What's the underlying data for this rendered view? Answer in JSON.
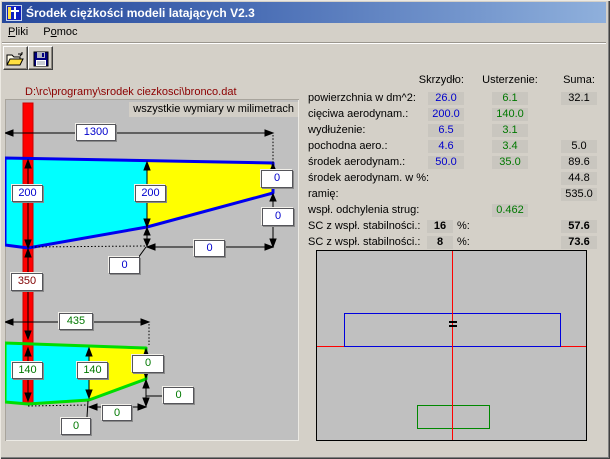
{
  "window": {
    "title": "Środek ciężkości modeli latających V2.3"
  },
  "menu": {
    "items": [
      {
        "label": "Pliki"
      },
      {
        "label": "Pomoc"
      }
    ]
  },
  "toolbar": {
    "open_icon": "open-folder-icon",
    "save_icon": "save-floppy-icon"
  },
  "file_path": "D:\\rc\\programy\\srodek ciezkosci\\bronco.dat",
  "drawing": {
    "note": "wszystkie wymiary w milimetrach",
    "wing": {
      "span": "1300",
      "root_chord": "200",
      "mid_chord": "200",
      "tip_top_offset": "0",
      "tip_bottom_offset": "0",
      "tip_sweep": "0",
      "break_offset": "0"
    },
    "wing_tail_distance": "350",
    "tail": {
      "span": "435",
      "root_chord": "140",
      "mid_chord": "140",
      "tip_top_offset": "0",
      "tip_bottom_offset": "0",
      "tip_sweep": "0",
      "break_offset": "0"
    }
  },
  "results": {
    "headers": {
      "wing": "Skrzydło:",
      "tail": "Usterzenie:",
      "sum": "Suma:"
    },
    "rows": [
      {
        "label": "powierzchnia w dm^2:",
        "wing": "26.0",
        "tail": "6.1",
        "sum": "32.1"
      },
      {
        "label": "cięciwa aerodynam.:",
        "wing": "200.0",
        "tail": "140.0"
      },
      {
        "label": "wydłużenie:",
        "wing": "6.5",
        "tail": "3.1"
      },
      {
        "label": "pochodna aero.:",
        "wing": "4.6",
        "tail": "3.4",
        "sum": "5.0"
      },
      {
        "label": "środek aerodynam.:",
        "wing": "50.0",
        "tail": "35.0",
        "sum": "89.6"
      },
      {
        "label": "środek aerodynam. w %:",
        "sum": "44.8"
      },
      {
        "label": "ramię:",
        "sum": "535.0"
      },
      {
        "label": "wspł. odchylenia strug:",
        "tail": "0.462"
      },
      {
        "label": "SC z wspł. stabilności.:",
        "coef": "16",
        "percent": "%:",
        "sum": "57.6"
      },
      {
        "label": "SC z wspł. stabilności.:",
        "coef": "8",
        "percent": "%:",
        "sum": "73.6"
      }
    ]
  },
  "colors": {
    "wing_value": "#0000cc",
    "tail_value": "#007800",
    "sum_value": "#000000",
    "wing_outline": "#0000ee",
    "tail_outline": "#00dd00",
    "inner_fill": "#00ffff",
    "outer_fill": "#ffff00",
    "fuselage": "#ff0000",
    "distance_text": "#800000",
    "file_path_text": "#8b0000",
    "crosshair": "#ff0000"
  }
}
